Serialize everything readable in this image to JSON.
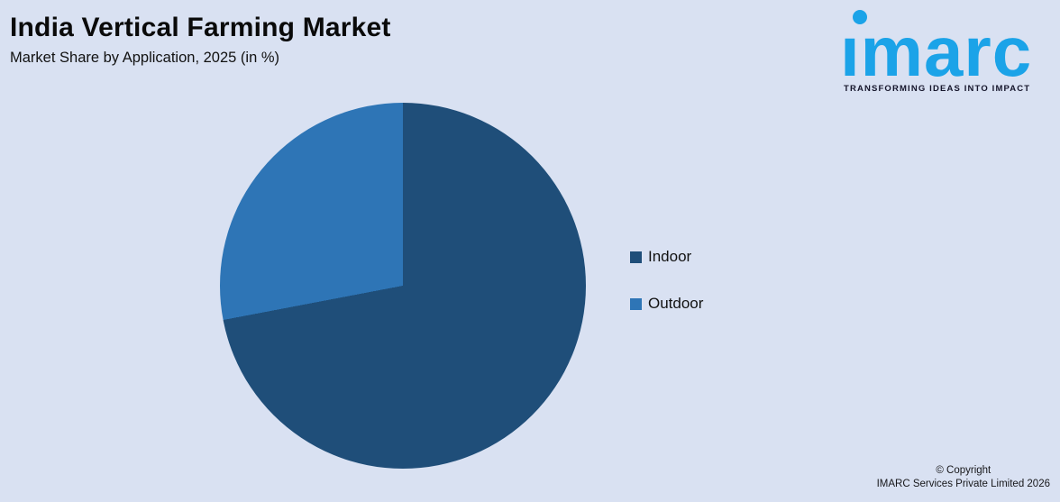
{
  "header": {
    "title": "India Vertical Farming Market",
    "subtitle": "Market Share by Application, 2025 (in %)"
  },
  "logo": {
    "brand": "imarc",
    "wordmark_glyphs": "ımarc",
    "tagline": "TRANSFORMING IDEAS INTO IMPACT",
    "brand_color": "#1BA3E8"
  },
  "chart_data": {
    "type": "pie",
    "title": "India Vertical Farming Market",
    "subtitle": "Market Share by Application, 2025 (in %)",
    "categories": [
      "Indoor",
      "Outdoor"
    ],
    "values": [
      72,
      28
    ],
    "unit": "%",
    "colors": [
      "#1F4E79",
      "#2E75B6"
    ],
    "start_angle_deg": 0,
    "direction": "clockwise",
    "legend_position": "right",
    "data_labels": false
  },
  "legend": {
    "items": [
      {
        "label": "Indoor",
        "color": "#1F4E79"
      },
      {
        "label": "Outdoor",
        "color": "#2E75B6"
      }
    ]
  },
  "footer": {
    "line1": "© Copyright",
    "line2": "IMARC Services Private Limited 2026"
  },
  "colors": {
    "background": "#D9E1F2",
    "indoor": "#1F4E79",
    "outdoor": "#2E75B6"
  }
}
